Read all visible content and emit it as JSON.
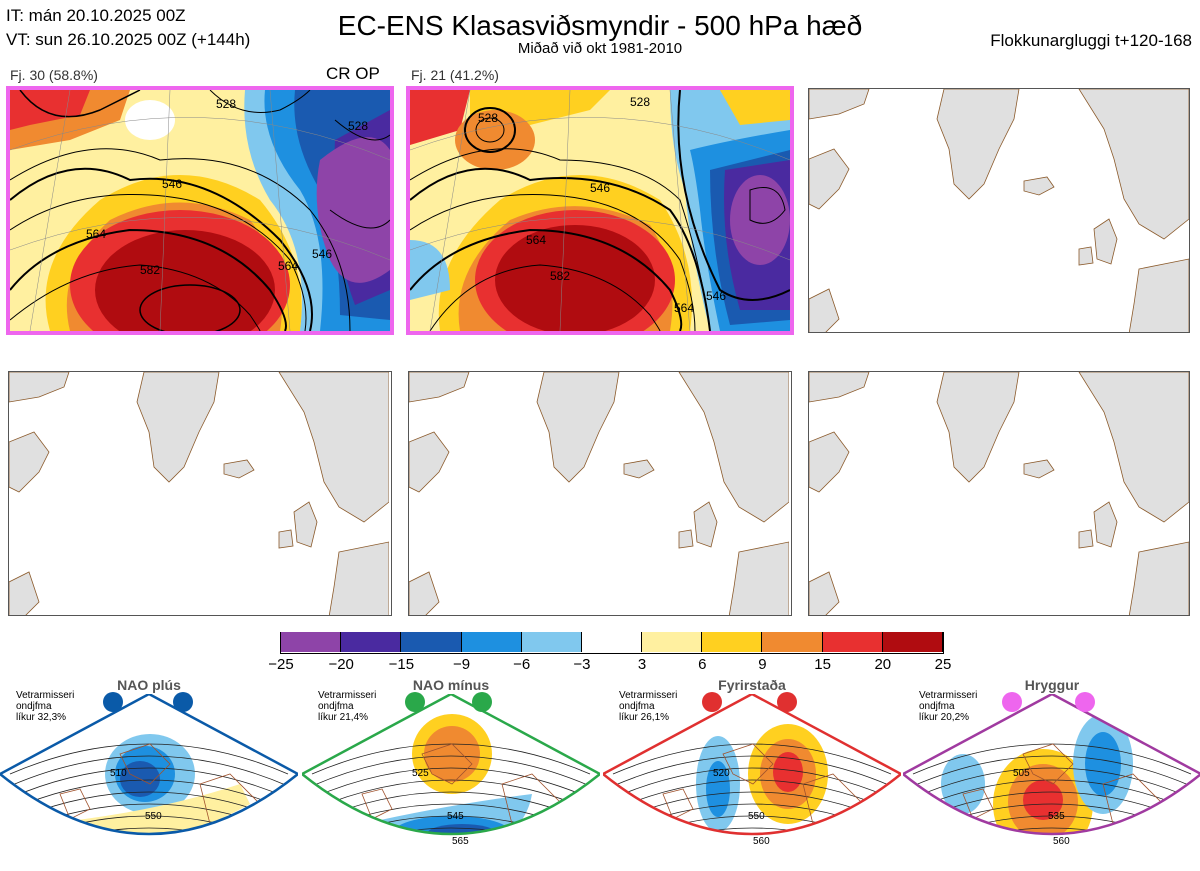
{
  "header": {
    "it_line": "IT: mán 20.10.2025 00Z",
    "vt_line": "VT: sun 26.10.2025 00Z  (+144h)",
    "title": "EC-ENS Klasasviðsmyndir - 500 hPa hæð",
    "subtitle": "Miðað við okt 1981-2010",
    "window": "Flokkunargluggi t+120-168"
  },
  "clusters": [
    {
      "label": "Fj. 30 (58.8%)",
      "tag": "CR OP",
      "contours": [
        "528",
        "546",
        "564",
        "582",
        "546",
        "564",
        "528"
      ]
    },
    {
      "label": "Fj. 21 (41.2%)",
      "tag": "",
      "contours": [
        "528",
        "546",
        "564",
        "582",
        "546",
        "564",
        "528"
      ]
    }
  ],
  "colorbar": {
    "ticks": [
      "−25",
      "−20",
      "−15",
      "−9",
      "−6",
      "−3",
      "3",
      "6",
      "9",
      "15",
      "20",
      "25"
    ],
    "colors": [
      "#8e44a8",
      "#4a2aa0",
      "#1a5ab0",
      "#1e90e0",
      "#80c8ee",
      "#ffffff",
      "#fff0a0",
      "#ffd020",
      "#f08a30",
      "#e83030",
      "#b00c10"
    ]
  },
  "regimes": [
    {
      "name": "NAO plús",
      "info": [
        "Vetrarmisseri",
        "ondjfma",
        "líkur 32,3%"
      ],
      "color": "#0a5aa8",
      "contours": [
        "510",
        "550"
      ]
    },
    {
      "name": "NAO mínus",
      "info": [
        "Vetrarmisseri",
        "ondjfma",
        "líkur 21,4%"
      ],
      "color": "#2aa84a",
      "contours": [
        "525",
        "545",
        "565"
      ]
    },
    {
      "name": "Fyrirstaða",
      "info": [
        "Vetrarmisseri",
        "ondjfma",
        "líkur 26,1%"
      ],
      "color": "#e03030",
      "contours": [
        "520",
        "550",
        "560"
      ]
    },
    {
      "name": "Hryggur",
      "info": [
        "Vetrarmisseri",
        "ondjfma",
        "líkur 20,2%"
      ],
      "color": "#a03aa0",
      "contours": [
        "505",
        "535",
        "560"
      ]
    }
  ]
}
